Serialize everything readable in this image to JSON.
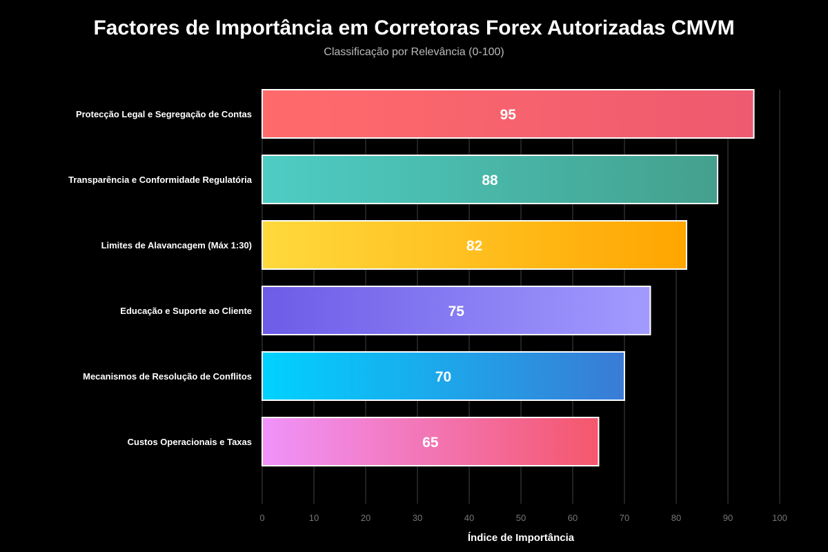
{
  "chart_data": {
    "type": "bar",
    "orientation": "horizontal",
    "title": "Factores de Importância em Corretoras Forex Autorizadas CMVM",
    "subtitle": "Classificação por Relevância (0-100)",
    "xlabel": "Índice de Importância",
    "ylabel": "",
    "xlim": [
      0,
      100
    ],
    "xticks": [
      "0",
      "10",
      "20",
      "30",
      "40",
      "50",
      "60",
      "70",
      "80",
      "90",
      "100"
    ],
    "grid": true,
    "categories": [
      "Protecção Legal e Segregação de Contas",
      "Transparência e Conformidade Regulatória",
      "Limites de Alavancagem (Máx 1:30)",
      "Educação e Suporte ao Cliente",
      "Mecanismos de Resolução de Conflitos",
      "Custos Operacionais e Taxas"
    ],
    "values": [
      95,
      88,
      82,
      75,
      70,
      65
    ],
    "colors": [
      [
        "#ff6b6b",
        "#ee5a6f"
      ],
      [
        "#4ecdc4",
        "#44a08d"
      ],
      [
        "#ffd93d",
        "#ffa500"
      ],
      [
        "#6c5ce7",
        "#a29bfe"
      ],
      [
        "#00d2ff",
        "#3a7bd5"
      ],
      [
        "#f093fb",
        "#f5576c"
      ]
    ]
  }
}
